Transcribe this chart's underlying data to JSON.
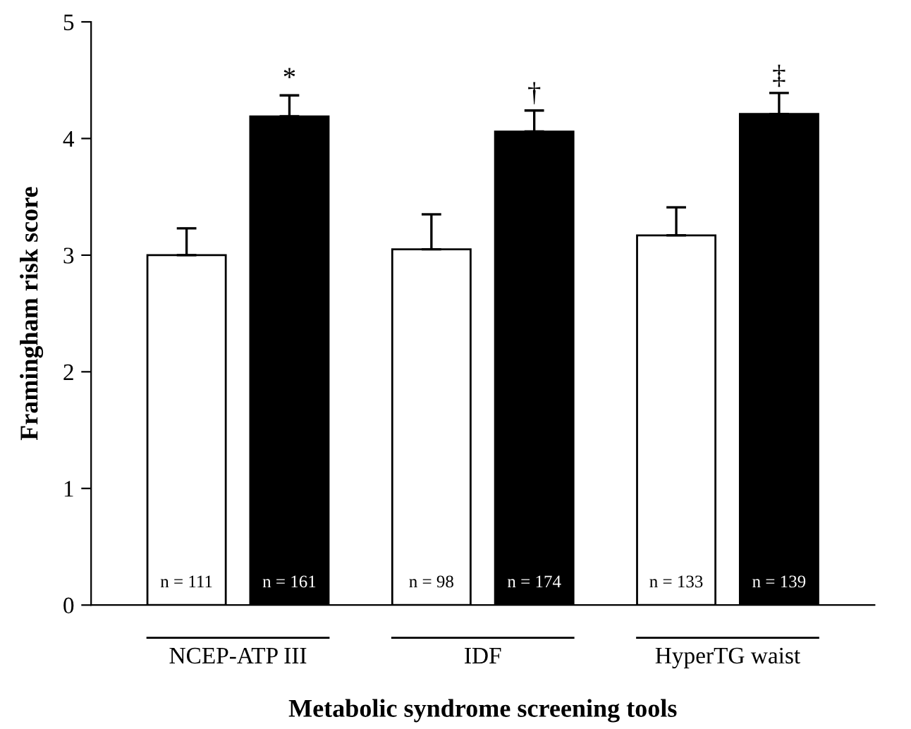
{
  "chart_data": {
    "type": "bar",
    "xlabel": "Metabolic syndrome screening tools",
    "ylabel": "Framingham risk score",
    "categories": [
      "NCEP-ATP III",
      "IDF",
      "HyperTG waist"
    ],
    "series": [
      {
        "color": "#ffffff",
        "values": [
          3.0,
          3.05,
          3.17
        ],
        "errors": [
          0.23,
          0.3,
          0.24
        ]
      },
      {
        "color": "#000000",
        "values": [
          4.19,
          4.06,
          4.21
        ],
        "errors": [
          0.18,
          0.18,
          0.18
        ]
      }
    ],
    "annotations": [
      "*",
      "†",
      "‡",
      "n = 111",
      "n = 161",
      "n = 98",
      "n = 174",
      "n = 133",
      "n = 139"
    ],
    "ylim": [
      0,
      5
    ],
    "yticks": [
      0,
      1,
      2,
      3,
      4,
      5
    ],
    "grid": false,
    "legend": false
  }
}
